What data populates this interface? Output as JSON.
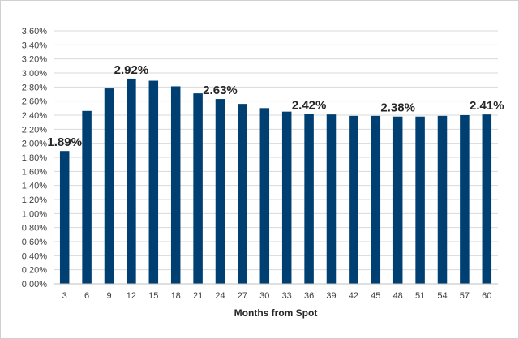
{
  "chart_data": {
    "type": "bar",
    "title": "",
    "xlabel": "Months from Spot",
    "ylabel": "",
    "categories": [
      "3",
      "6",
      "9",
      "12",
      "15",
      "18",
      "21",
      "24",
      "27",
      "30",
      "33",
      "36",
      "39",
      "42",
      "45",
      "48",
      "51",
      "54",
      "57",
      "60"
    ],
    "values": [
      1.89,
      2.46,
      2.78,
      2.92,
      2.89,
      2.81,
      2.71,
      2.63,
      2.56,
      2.5,
      2.45,
      2.42,
      2.41,
      2.39,
      2.39,
      2.38,
      2.38,
      2.39,
      2.4,
      2.41
    ],
    "value_unit": "%",
    "ylim": [
      0,
      3.6
    ],
    "ytick_step": 0.2,
    "ytick_labels": [
      "0.00%",
      "0.20%",
      "0.40%",
      "0.60%",
      "0.80%",
      "1.00%",
      "1.20%",
      "1.40%",
      "1.60%",
      "1.80%",
      "2.00%",
      "2.20%",
      "2.40%",
      "2.60%",
      "2.80%",
      "3.00%",
      "3.20%",
      "3.40%",
      "3.60%"
    ],
    "grid": true,
    "legend": "none",
    "bar_color": "#003f72",
    "data_labels": [
      {
        "category": "3",
        "text": "1.89%"
      },
      {
        "category": "12",
        "text": "2.92%"
      },
      {
        "category": "24",
        "text": "2.63%"
      },
      {
        "category": "36",
        "text": "2.42%"
      },
      {
        "category": "48",
        "text": "2.38%"
      },
      {
        "category": "60",
        "text": "2.41%"
      }
    ]
  }
}
